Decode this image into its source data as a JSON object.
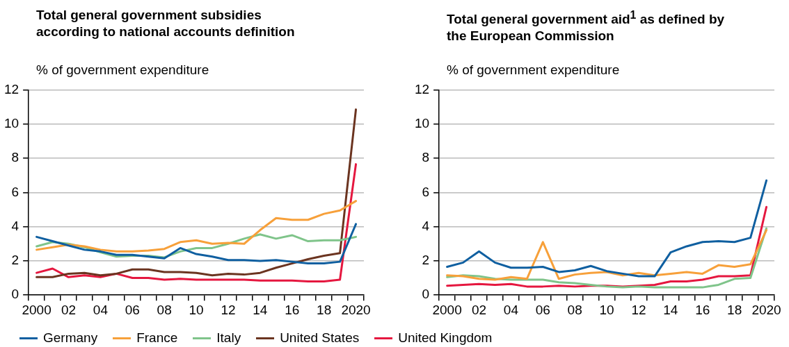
{
  "chart_data": [
    {
      "type": "line",
      "title": "Total general government subsidies according to national accounts definition",
      "ylabel": "% of government expenditure",
      "categories": [
        "2000",
        null,
        "02",
        null,
        "04",
        null,
        "06",
        null,
        "08",
        null,
        "10",
        null,
        "12",
        null,
        "14",
        null,
        "16",
        null,
        "18",
        null,
        "2020"
      ],
      "ylim": [
        0,
        12
      ],
      "yticks": [
        0,
        2,
        4,
        6,
        8,
        10,
        12
      ],
      "grid": "y",
      "legend": "bottom",
      "marker": "none",
      "line_style": "solid",
      "series": [
        {
          "name": "Germany",
          "color": "#0f5fa0",
          "values": [
            3.4,
            3.15,
            2.9,
            2.65,
            2.55,
            2.35,
            2.35,
            2.25,
            2.15,
            2.75,
            2.4,
            2.25,
            2.05,
            2.05,
            2.0,
            2.05,
            1.95,
            1.85,
            1.85,
            1.95,
            4.15
          ]
        },
        {
          "name": "France",
          "color": "#f7a03a",
          "values": [
            2.65,
            2.8,
            2.95,
            2.85,
            2.65,
            2.55,
            2.55,
            2.6,
            2.7,
            3.1,
            3.2,
            3.0,
            3.05,
            3.0,
            3.8,
            4.5,
            4.4,
            4.4,
            4.75,
            4.95,
            5.5
          ]
        },
        {
          "name": "Italy",
          "color": "#7fc48a",
          "values": [
            2.85,
            3.1,
            3.0,
            2.8,
            2.5,
            2.25,
            2.3,
            2.3,
            2.2,
            2.55,
            2.75,
            2.75,
            3.0,
            3.3,
            3.55,
            3.3,
            3.5,
            3.15,
            3.2,
            3.2,
            3.4
          ]
        },
        {
          "name": "United States",
          "color": "#6b3420",
          "values": [
            1.05,
            1.05,
            1.25,
            1.3,
            1.15,
            1.25,
            1.5,
            1.5,
            1.35,
            1.35,
            1.3,
            1.15,
            1.25,
            1.2,
            1.3,
            1.6,
            1.85,
            2.1,
            2.3,
            2.45,
            10.85
          ]
        },
        {
          "name": "United Kingdom",
          "color": "#e5173f",
          "values": [
            1.3,
            1.55,
            1.05,
            1.15,
            1.05,
            1.25,
            1.0,
            1.0,
            0.9,
            0.95,
            0.9,
            0.9,
            0.9,
            0.9,
            0.85,
            0.85,
            0.85,
            0.8,
            0.8,
            0.9,
            7.65
          ]
        }
      ]
    },
    {
      "type": "line",
      "title": "Total general government aid$^{1}$ as defined by the European Commission",
      "ylabel": "% of government expenditure",
      "categories": [
        "2000",
        null,
        "02",
        null,
        "04",
        null,
        "06",
        null,
        "08",
        null,
        "10",
        null,
        "12",
        null,
        "14",
        null,
        "16",
        null,
        "18",
        null,
        "2020"
      ],
      "ylim": [
        0,
        12
      ],
      "yticks": [
        0,
        2,
        4,
        6,
        8,
        10,
        12
      ],
      "grid": "y",
      "marker": "none",
      "line_style": "solid",
      "series": [
        {
          "color": "#0f5fa0",
          "values": [
            1.65,
            1.9,
            2.55,
            1.9,
            1.6,
            1.6,
            1.65,
            1.35,
            1.45,
            1.7,
            1.4,
            1.25,
            1.1,
            1.1,
            2.5,
            2.85,
            3.1,
            3.15,
            3.1,
            3.35,
            6.7
          ]
        },
        {
          "color": "#f7a03a",
          "values": [
            1.15,
            1.1,
            0.95,
            0.9,
            1.05,
            0.95,
            3.1,
            0.95,
            1.2,
            1.3,
            1.35,
            1.15,
            1.3,
            1.15,
            1.25,
            1.35,
            1.25,
            1.75,
            1.65,
            1.8,
            3.8
          ]
        },
        {
          "color": "#7fc48a",
          "values": [
            1.05,
            1.15,
            1.1,
            0.95,
            0.9,
            0.9,
            0.9,
            0.75,
            0.7,
            0.6,
            0.5,
            0.45,
            0.5,
            0.45,
            0.45,
            0.45,
            0.45,
            0.6,
            0.95,
            1.0,
            3.9
          ]
        },
        {
          "color": "#e5173f",
          "values": [
            0.55,
            0.6,
            0.65,
            0.6,
            0.65,
            0.5,
            0.5,
            0.55,
            0.5,
            0.55,
            0.55,
            0.5,
            0.55,
            0.6,
            0.8,
            0.8,
            0.9,
            1.1,
            1.1,
            1.15,
            5.15
          ]
        }
      ]
    }
  ]
}
